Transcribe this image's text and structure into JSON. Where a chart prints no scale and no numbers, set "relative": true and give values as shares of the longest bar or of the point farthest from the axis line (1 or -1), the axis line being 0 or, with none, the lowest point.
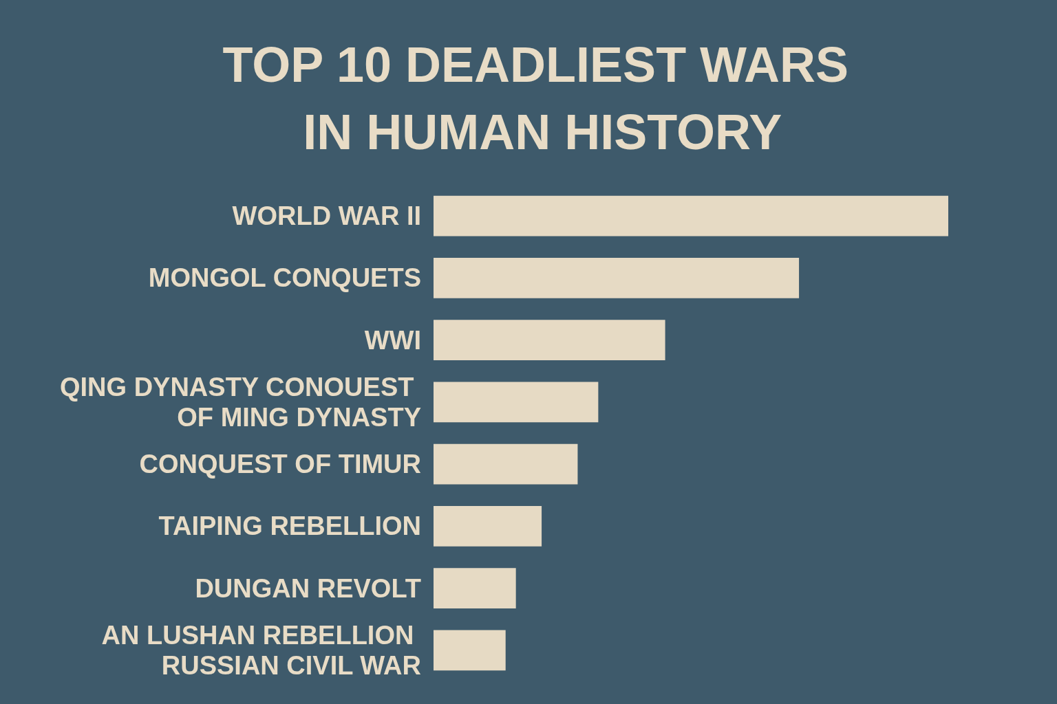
{
  "chart_data": {
    "type": "bar",
    "title": "TOP 10 DEADLIEST WARS IN HUMAN HISTORY",
    "orientation": "horizontal",
    "relative": true,
    "categories": [
      "WORLD WAR II",
      "MONGOL CONQUETS",
      "WWI",
      "QING DYNASTY CONOUEST OF MING DYNASTY",
      "CONQUEST OF TIMUR",
      "TAIPING REBELLION",
      "DUNGAN REVOLT",
      "AN LUSHAN REBELLION RUSSIAN CIVIL WAR"
    ],
    "values": [
      1,
      0.71,
      0.45,
      0.32,
      0.28,
      0.21,
      0.16,
      0.14
    ],
    "color": "#e6dac4"
  }
}
